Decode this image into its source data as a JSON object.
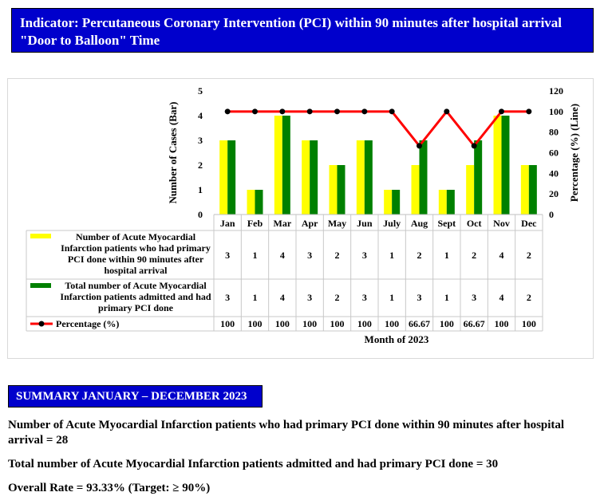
{
  "header": {
    "title": "Indicator: Percutaneous Coronary Intervention (PCI) within 90 minutes after hospital arrival \"Door to Balloon\" Time"
  },
  "chart_data": {
    "type": "bar",
    "categories": [
      "Jan",
      "Feb",
      "Mar",
      "Apr",
      "May",
      "Jun",
      "July",
      "Aug",
      "Sept",
      "Oct",
      "Nov",
      "Dec"
    ],
    "series": [
      {
        "name": "Number of Acute Myocardial Infarction patients who had primary PCI done within 90 minutes after hospital arrival",
        "type": "bar",
        "color": "#ffff00",
        "values": [
          3,
          1,
          4,
          3,
          2,
          3,
          1,
          2,
          1,
          2,
          4,
          2
        ]
      },
      {
        "name": "Total number of Acute Myocardial Infarction patients admitted and had primary PCI done",
        "type": "bar",
        "color": "#008000",
        "values": [
          3,
          1,
          4,
          3,
          2,
          3,
          1,
          3,
          1,
          3,
          4,
          2
        ]
      },
      {
        "name": "Percentage (%)",
        "type": "line",
        "axis": "secondary",
        "color": "#ff0000",
        "marker_color": "#000000",
        "values": [
          100,
          100,
          100,
          100,
          100,
          100,
          100,
          66.67,
          100,
          66.67,
          100,
          100
        ],
        "labels": [
          "100",
          "100",
          "100",
          "100",
          "100",
          "100",
          "100",
          "66.67",
          "100",
          "66.67",
          "100",
          "100"
        ]
      }
    ],
    "ylabel": "Number of Cases (Bar)",
    "ylim": [
      0,
      5
    ],
    "yticks": [
      0,
      1,
      2,
      3,
      4,
      5
    ],
    "y2label": "Percentage (%) (Line)",
    "y2lim": [
      0,
      120
    ],
    "y2ticks": [
      0,
      20,
      40,
      60,
      80,
      100,
      120
    ],
    "xlabel": "Month of 2023",
    "data_table": true,
    "grid": false
  },
  "summary": {
    "heading": "SUMMARY JANUARY – DECEMBER 2023",
    "line1": "Number of Acute Myocardial Infarction patients who had primary PCI done within 90 minutes after hospital arrival = 28",
    "line2": "Total number of Acute Myocardial Infarction patients admitted and had primary PCI done = 30",
    "line3": "Overall Rate = 93.33% (Target: ≥ 90%)"
  }
}
